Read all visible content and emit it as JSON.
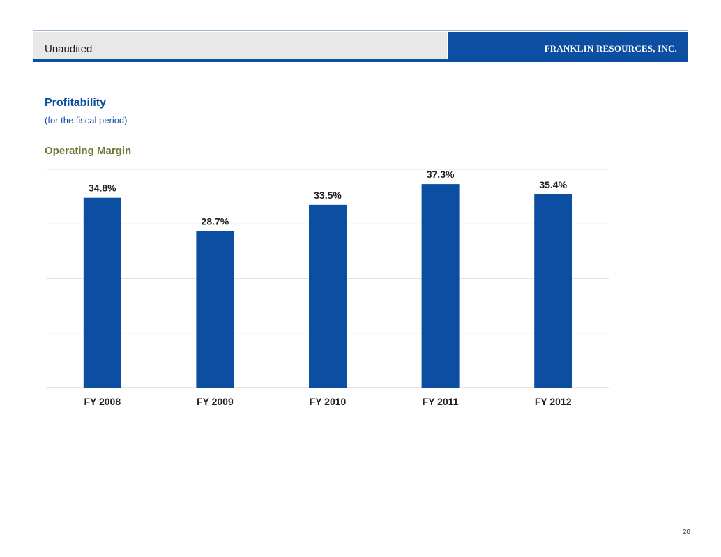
{
  "header": {
    "left_label": "Unaudited",
    "company": "FRANKLIN RESOURCES, INC."
  },
  "section": {
    "title": "Profitability",
    "subtitle": "(for the fiscal period)"
  },
  "chart_data": {
    "type": "bar",
    "title": "Operating Margin",
    "categories": [
      "FY 2008",
      "FY 2009",
      "FY 2010",
      "FY 2011",
      "FY 2012"
    ],
    "values": [
      34.8,
      28.7,
      33.5,
      37.3,
      35.4
    ],
    "data_labels": [
      "34.8%",
      "28.7%",
      "33.5%",
      "37.3%",
      "35.4%"
    ],
    "ylim": [
      0,
      40
    ],
    "grid": true,
    "bar_color": "#0b4ea2"
  },
  "page_number": "20"
}
